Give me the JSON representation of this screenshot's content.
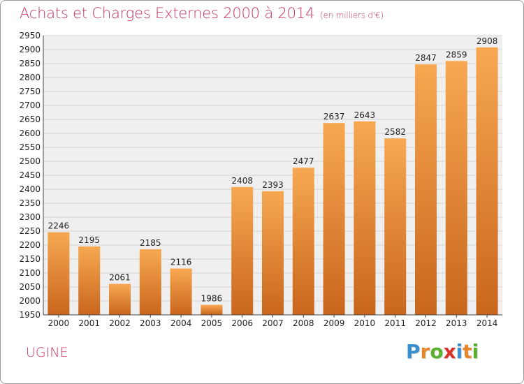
{
  "header": {
    "title": "Achats et Charges Externes 2000 à 2014",
    "subtitle": "(en milliers d'€)"
  },
  "footer": {
    "commune": "UGINE",
    "logo": {
      "letters": [
        {
          "char": "P",
          "color": "#3a8fd1"
        },
        {
          "char": "r",
          "color": "#e8862a"
        },
        {
          "char": "o",
          "color": "#57b030"
        },
        {
          "char": "x",
          "color": "#d8322b"
        },
        {
          "char": "i",
          "color": "#3a8fd1"
        },
        {
          "char": "t",
          "color": "#e8862a"
        },
        {
          "char": "i",
          "color": "#57b030"
        }
      ]
    }
  },
  "colors": {
    "title": "#c5366a",
    "bar_light": "#f7a851",
    "bar_dark": "#c9661d",
    "grid": "#d4d4d4",
    "plot_background": "#efefef"
  },
  "chart_data": {
    "type": "bar",
    "title": "Achats et Charges Externes 2000 à 2014",
    "unit": "(en milliers d'€)",
    "categories": [
      "2000",
      "2001",
      "2002",
      "2003",
      "2004",
      "2005",
      "2006",
      "2007",
      "2008",
      "2009",
      "2010",
      "2011",
      "2012",
      "2013",
      "2014"
    ],
    "values": [
      2246,
      2195,
      2061,
      2185,
      2116,
      1986,
      2408,
      2393,
      2477,
      2637,
      2643,
      2582,
      2847,
      2859,
      2908
    ],
    "ylim": [
      1950,
      2950
    ],
    "ytick_step": 50,
    "grid": true,
    "data_labels": true
  }
}
